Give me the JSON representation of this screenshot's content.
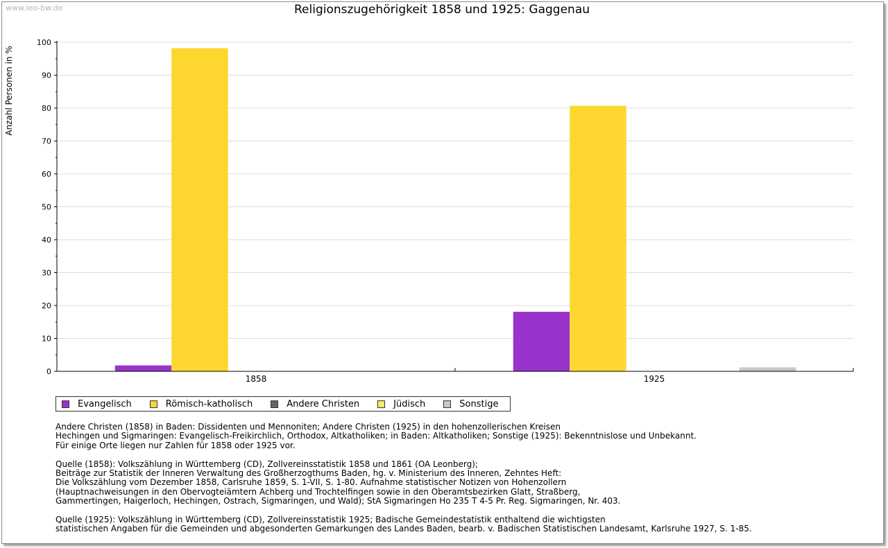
{
  "watermark": "www.leo-bw.de",
  "chart_data": {
    "type": "bar",
    "title": "Religionszugehörigkeit 1858 und 1925: Gaggenau",
    "xlabel": "",
    "ylabel": "Anzahl Personen in %",
    "ylim": [
      0,
      100
    ],
    "yticks": [
      "0",
      "10",
      "20",
      "30",
      "40",
      "50",
      "60",
      "70",
      "80",
      "90",
      "100"
    ],
    "categories": [
      "1858",
      "1925"
    ],
    "series": [
      {
        "name": "Evangelisch",
        "color": "#9933cc",
        "values": [
          1.8,
          18.1
        ]
      },
      {
        "name": "Römisch-katholisch",
        "color": "#fdd730",
        "values": [
          98.2,
          80.7
        ]
      },
      {
        "name": "Andere Christen",
        "color": "#666666",
        "values": [
          0,
          0
        ]
      },
      {
        "name": "Jüdisch",
        "color": "#fde668",
        "values": [
          0,
          0
        ]
      },
      {
        "name": "Sonstige",
        "color": "#c8c8c8",
        "values": [
          0,
          1.2
        ]
      }
    ],
    "grid": true,
    "legend_position": "bottom-left"
  },
  "notes": [
    [
      "Andere Christen (1858) in Baden: Dissidenten und Mennoniten; Andere Christen (1925) in den hohenzollerischen Kreisen",
      "Hechingen und Sigmaringen: Evangelisch-Freikirchlich, Orthodox, Altkatholiken; in Baden: Altkatholiken; Sonstige (1925): Bekenntnislose und Unbekannt.",
      "Für einige Orte liegen nur Zahlen für 1858 oder 1925 vor."
    ],
    [
      "Quelle (1858): Volkszählung in Württemberg (CD), Zollvereinsstatistik 1858 und 1861 (OA Leonberg);",
      "Beiträge zur Statistik der Inneren Verwaltung des Großherzogthums Baden, hg. v. Ministerium des Inneren, Zehntes Heft:",
      "Die Volkszählung vom Dezember 1858, Carlsruhe 1859, S. 1-VII, S. 1-80. Aufnahme statistischer Notizen von Hohenzollern",
      "(Hauptnachweisungen in den Obervogteiämtern Achberg und Trochtelfingen sowie in den Oberamtsbezirken Glatt, Straßberg,",
      "Gammertingen, Haigerloch, Hechingen, Ostrach, Sigmaringen, und Wald); StA Sigmaringen Ho 235 T 4-5 Pr. Reg. Sigmaringen, Nr. 403."
    ],
    [
      "Quelle (1925): Volkszählung in Württemberg (CD), Zollvereinsstatistik 1925; Badische Gemeindestatistik enthaltend die wichtigsten",
      "statistischen Angaben für die Gemeinden und abgesonderten Gemarkungen des Landes Baden, bearb. v. Badischen Statistischen Landesamt, Karlsruhe 1927, S. 1-85."
    ]
  ]
}
